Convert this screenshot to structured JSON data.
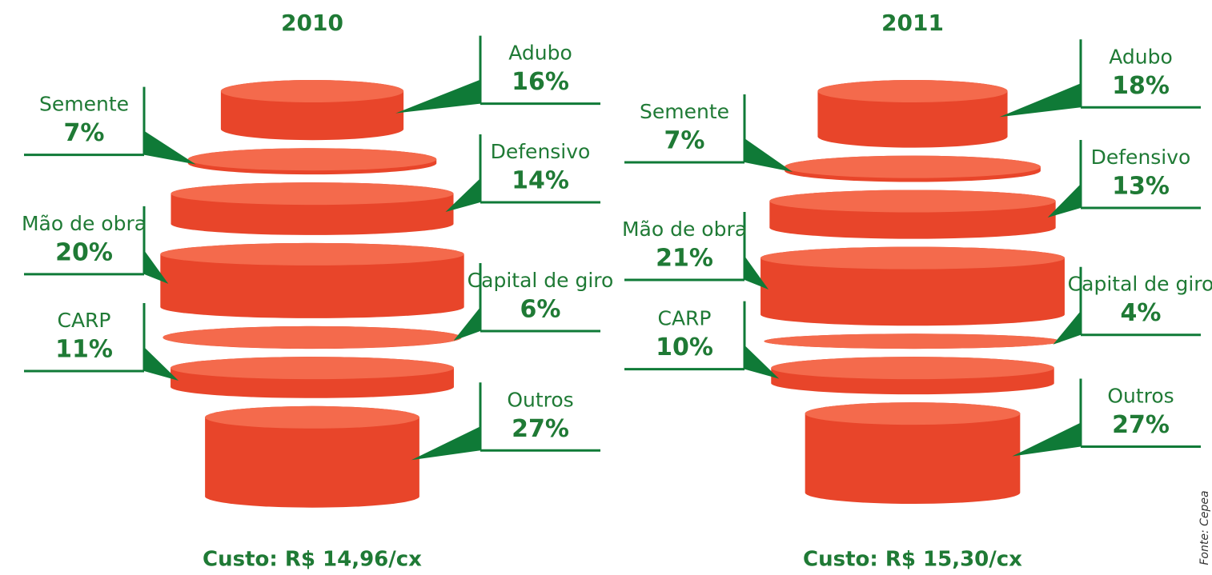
{
  "chart_data": [
    {
      "type": "pictorial",
      "title": "2010",
      "categories": [
        "Adubo",
        "Semente",
        "Defensivo",
        "Mão de obra",
        "Capital de giro",
        "CARP",
        "Outros"
      ],
      "values": [
        16,
        7,
        14,
        20,
        6,
        11,
        27
      ],
      "value_labels": [
        "16%",
        "7%",
        "14%",
        "20%",
        "6%",
        "11%",
        "27%"
      ],
      "footer": "Custo: R$ 14,96/cx",
      "color": "#e8452a"
    },
    {
      "type": "pictorial",
      "title": "2011",
      "categories": [
        "Adubo",
        "Semente",
        "Defensivo",
        "Mão de obra",
        "Capital de giro",
        "CARP",
        "Outros"
      ],
      "values": [
        18,
        7,
        13,
        21,
        4,
        10,
        27
      ],
      "value_labels": [
        "18%",
        "7%",
        "13%",
        "21%",
        "4%",
        "10%",
        "27%"
      ],
      "footer": "Custo: R$ 15,30/cx",
      "color": "#e8452a"
    }
  ],
  "source": "Fonte: Cepea"
}
